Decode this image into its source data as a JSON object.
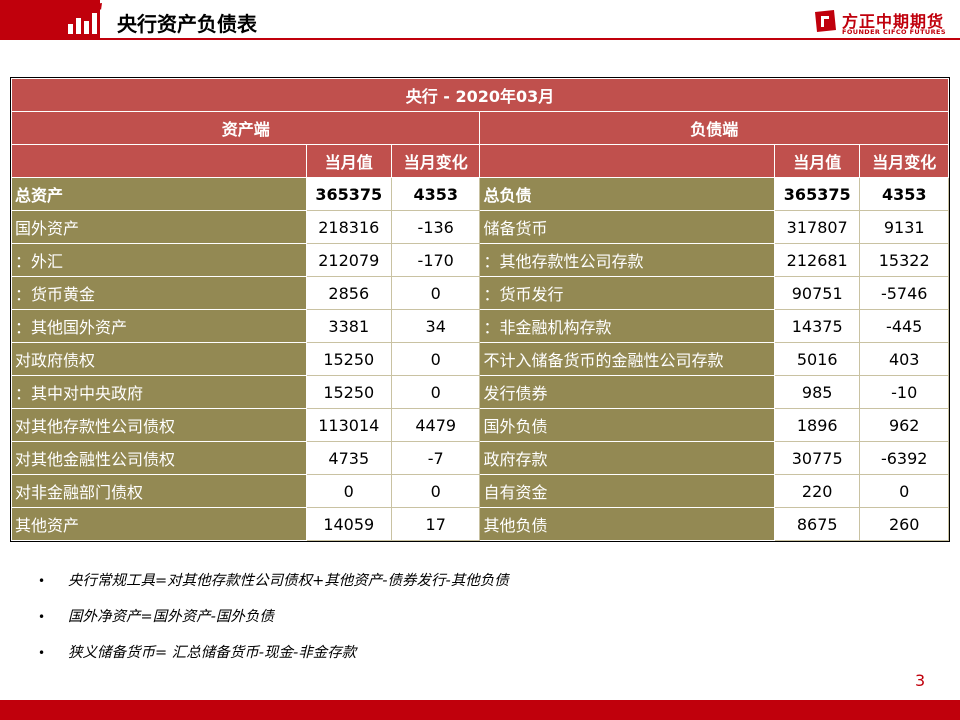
{
  "header": {
    "title": "央行资产负债表",
    "logo_cn": "方正中期期货",
    "logo_en": "FOUNDER CIFCO FUTURES"
  },
  "table": {
    "title": "央行 - 2020年03月",
    "asset_section": "资产端",
    "liability_section": "负债端",
    "col_value": "当月值",
    "col_change": "当月变化",
    "assets": [
      {
        "label": "总资产",
        "value": "365375",
        "change": "4353"
      },
      {
        "label": "国外资产",
        "value": "218316",
        "change": "-136"
      },
      {
        "label": "：外汇",
        "value": "212079",
        "change": "-170"
      },
      {
        "label": "：货币黄金",
        "value": "2856",
        "change": "0"
      },
      {
        "label": "：其他国外资产",
        "value": "3381",
        "change": "34"
      },
      {
        "label": "对政府债权",
        "value": "15250",
        "change": "0"
      },
      {
        "label": "：其中对中央政府",
        "value": "15250",
        "change": "0"
      },
      {
        "label": "对其他存款性公司债权",
        "value": "113014",
        "change": "4479"
      },
      {
        "label": "对其他金融性公司债权",
        "value": "4735",
        "change": "-7"
      },
      {
        "label": "对非金融部门债权",
        "value": "0",
        "change": "0"
      },
      {
        "label": "其他资产",
        "value": "14059",
        "change": "17"
      }
    ],
    "liabilities": [
      {
        "label": "总负债",
        "value": "365375",
        "change": "4353"
      },
      {
        "label": "储备货币",
        "value": "317807",
        "change": "9131"
      },
      {
        "label": "：其他存款性公司存款",
        "value": "212681",
        "change": "15322"
      },
      {
        "label": "：货币发行",
        "value": "90751",
        "change": "-5746"
      },
      {
        "label": "：非金融机构存款",
        "value": "14375",
        "change": "-445"
      },
      {
        "label": "不计入储备货币的金融性公司存款",
        "value": "5016",
        "change": "403"
      },
      {
        "label": "发行债券",
        "value": "985",
        "change": "-10"
      },
      {
        "label": "国外负债",
        "value": "1896",
        "change": "962"
      },
      {
        "label": "政府存款",
        "value": "30775",
        "change": "-6392"
      },
      {
        "label": "自有资金",
        "value": "220",
        "change": "0"
      },
      {
        "label": "其他负债",
        "value": "8675",
        "change": "260"
      }
    ]
  },
  "notes": [
    {
      "bullet": "•",
      "text": "央行常规工具=对其他存款性公司债权+其他资产-债券发行-其他负债"
    },
    {
      "bullet": "•",
      "text": "国外净资产=国外资产-国外负债"
    },
    {
      "bullet": "•",
      "text": "狭义储备货币= 汇总储备货币-现金-非金存款"
    }
  ],
  "page_number": "3",
  "colors": {
    "brand_red": "#c0000c",
    "header_red": "#c0504d",
    "olive": "#938953"
  }
}
